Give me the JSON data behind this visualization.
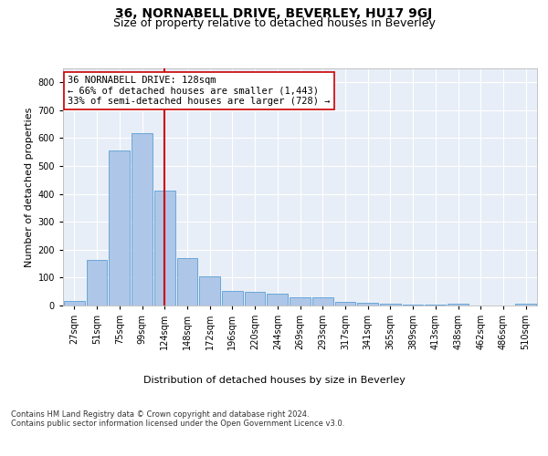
{
  "title": "36, NORNABELL DRIVE, BEVERLEY, HU17 9GJ",
  "subtitle": "Size of property relative to detached houses in Beverley",
  "xlabel": "Distribution of detached houses by size in Beverley",
  "ylabel": "Number of detached properties",
  "bar_color": "#aec6e8",
  "bar_edgecolor": "#5a9fd4",
  "background_color": "#e8eef7",
  "annotation_line1": "36 NORNABELL DRIVE: 128sqm",
  "annotation_line2": "← 66% of detached houses are smaller (1,443)",
  "annotation_line3": "33% of semi-detached houses are larger (728) →",
  "vline_x_index": 4,
  "vline_color": "#cc0000",
  "categories": [
    "27sqm",
    "51sqm",
    "75sqm",
    "99sqm",
    "124sqm",
    "148sqm",
    "172sqm",
    "196sqm",
    "220sqm",
    "244sqm",
    "269sqm",
    "293sqm",
    "317sqm",
    "341sqm",
    "365sqm",
    "389sqm",
    "413sqm",
    "438sqm",
    "462sqm",
    "486sqm",
    "510sqm"
  ],
  "values": [
    17,
    165,
    557,
    617,
    412,
    170,
    103,
    52,
    50,
    42,
    30,
    30,
    13,
    10,
    7,
    3,
    3,
    5,
    0,
    0,
    5
  ],
  "ylim": [
    0,
    850
  ],
  "yticks": [
    0,
    100,
    200,
    300,
    400,
    500,
    600,
    700,
    800
  ],
  "footnote": "Contains HM Land Registry data © Crown copyright and database right 2024.\nContains public sector information licensed under the Open Government Licence v3.0.",
  "title_fontsize": 10,
  "subtitle_fontsize": 9,
  "ylabel_fontsize": 8,
  "xlabel_fontsize": 8,
  "tick_fontsize": 7,
  "footnote_fontsize": 6,
  "annot_fontsize": 7.5
}
